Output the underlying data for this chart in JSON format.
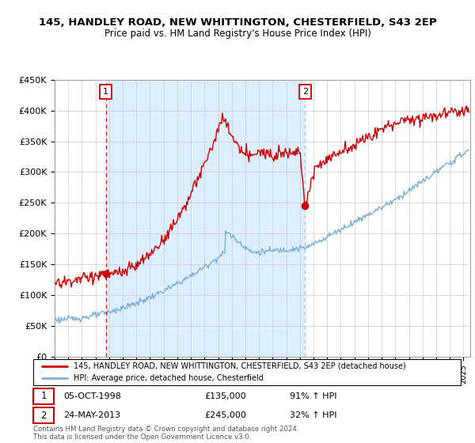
{
  "title": "145, HANDLEY ROAD, NEW WHITTINGTON, CHESTERFIELD, S43 2EP",
  "subtitle": "Price paid vs. HM Land Registry's House Price Index (HPI)",
  "ylim": [
    0,
    450000
  ],
  "yticks": [
    0,
    50000,
    100000,
    150000,
    200000,
    250000,
    300000,
    350000,
    400000,
    450000
  ],
  "ytick_labels": [
    "£0",
    "£50K",
    "£100K",
    "£150K",
    "£200K",
    "£250K",
    "£300K",
    "£350K",
    "£400K",
    "£450K"
  ],
  "legend_line1": "145, HANDLEY ROAD, NEW WHITTINGTON, CHESTERFIELD, S43 2EP (detached house)",
  "legend_line2": "HPI: Average price, detached house, Chesterfield",
  "sale1_label": "1",
  "sale1_date": "05-OCT-1998",
  "sale1_price": "£135,000",
  "sale1_hpi": "91% ↑ HPI",
  "sale2_label": "2",
  "sale2_date": "24-MAY-2013",
  "sale2_price": "£245,000",
  "sale2_hpi": "32% ↑ HPI",
  "footer": "Contains HM Land Registry data © Crown copyright and database right 2024.\nThis data is licensed under the Open Government Licence v3.0.",
  "red_color": "#cc0000",
  "blue_color": "#7ab0d4",
  "shade_color": "#ddeeff",
  "sale1_x": 1998.75,
  "sale1_y": 135000,
  "sale2_x": 2013.38,
  "sale2_y": 245000,
  "vline1_x": 1998.75,
  "vline2_x": 2013.38,
  "xmin": 1995.0,
  "xmax": 2025.5
}
